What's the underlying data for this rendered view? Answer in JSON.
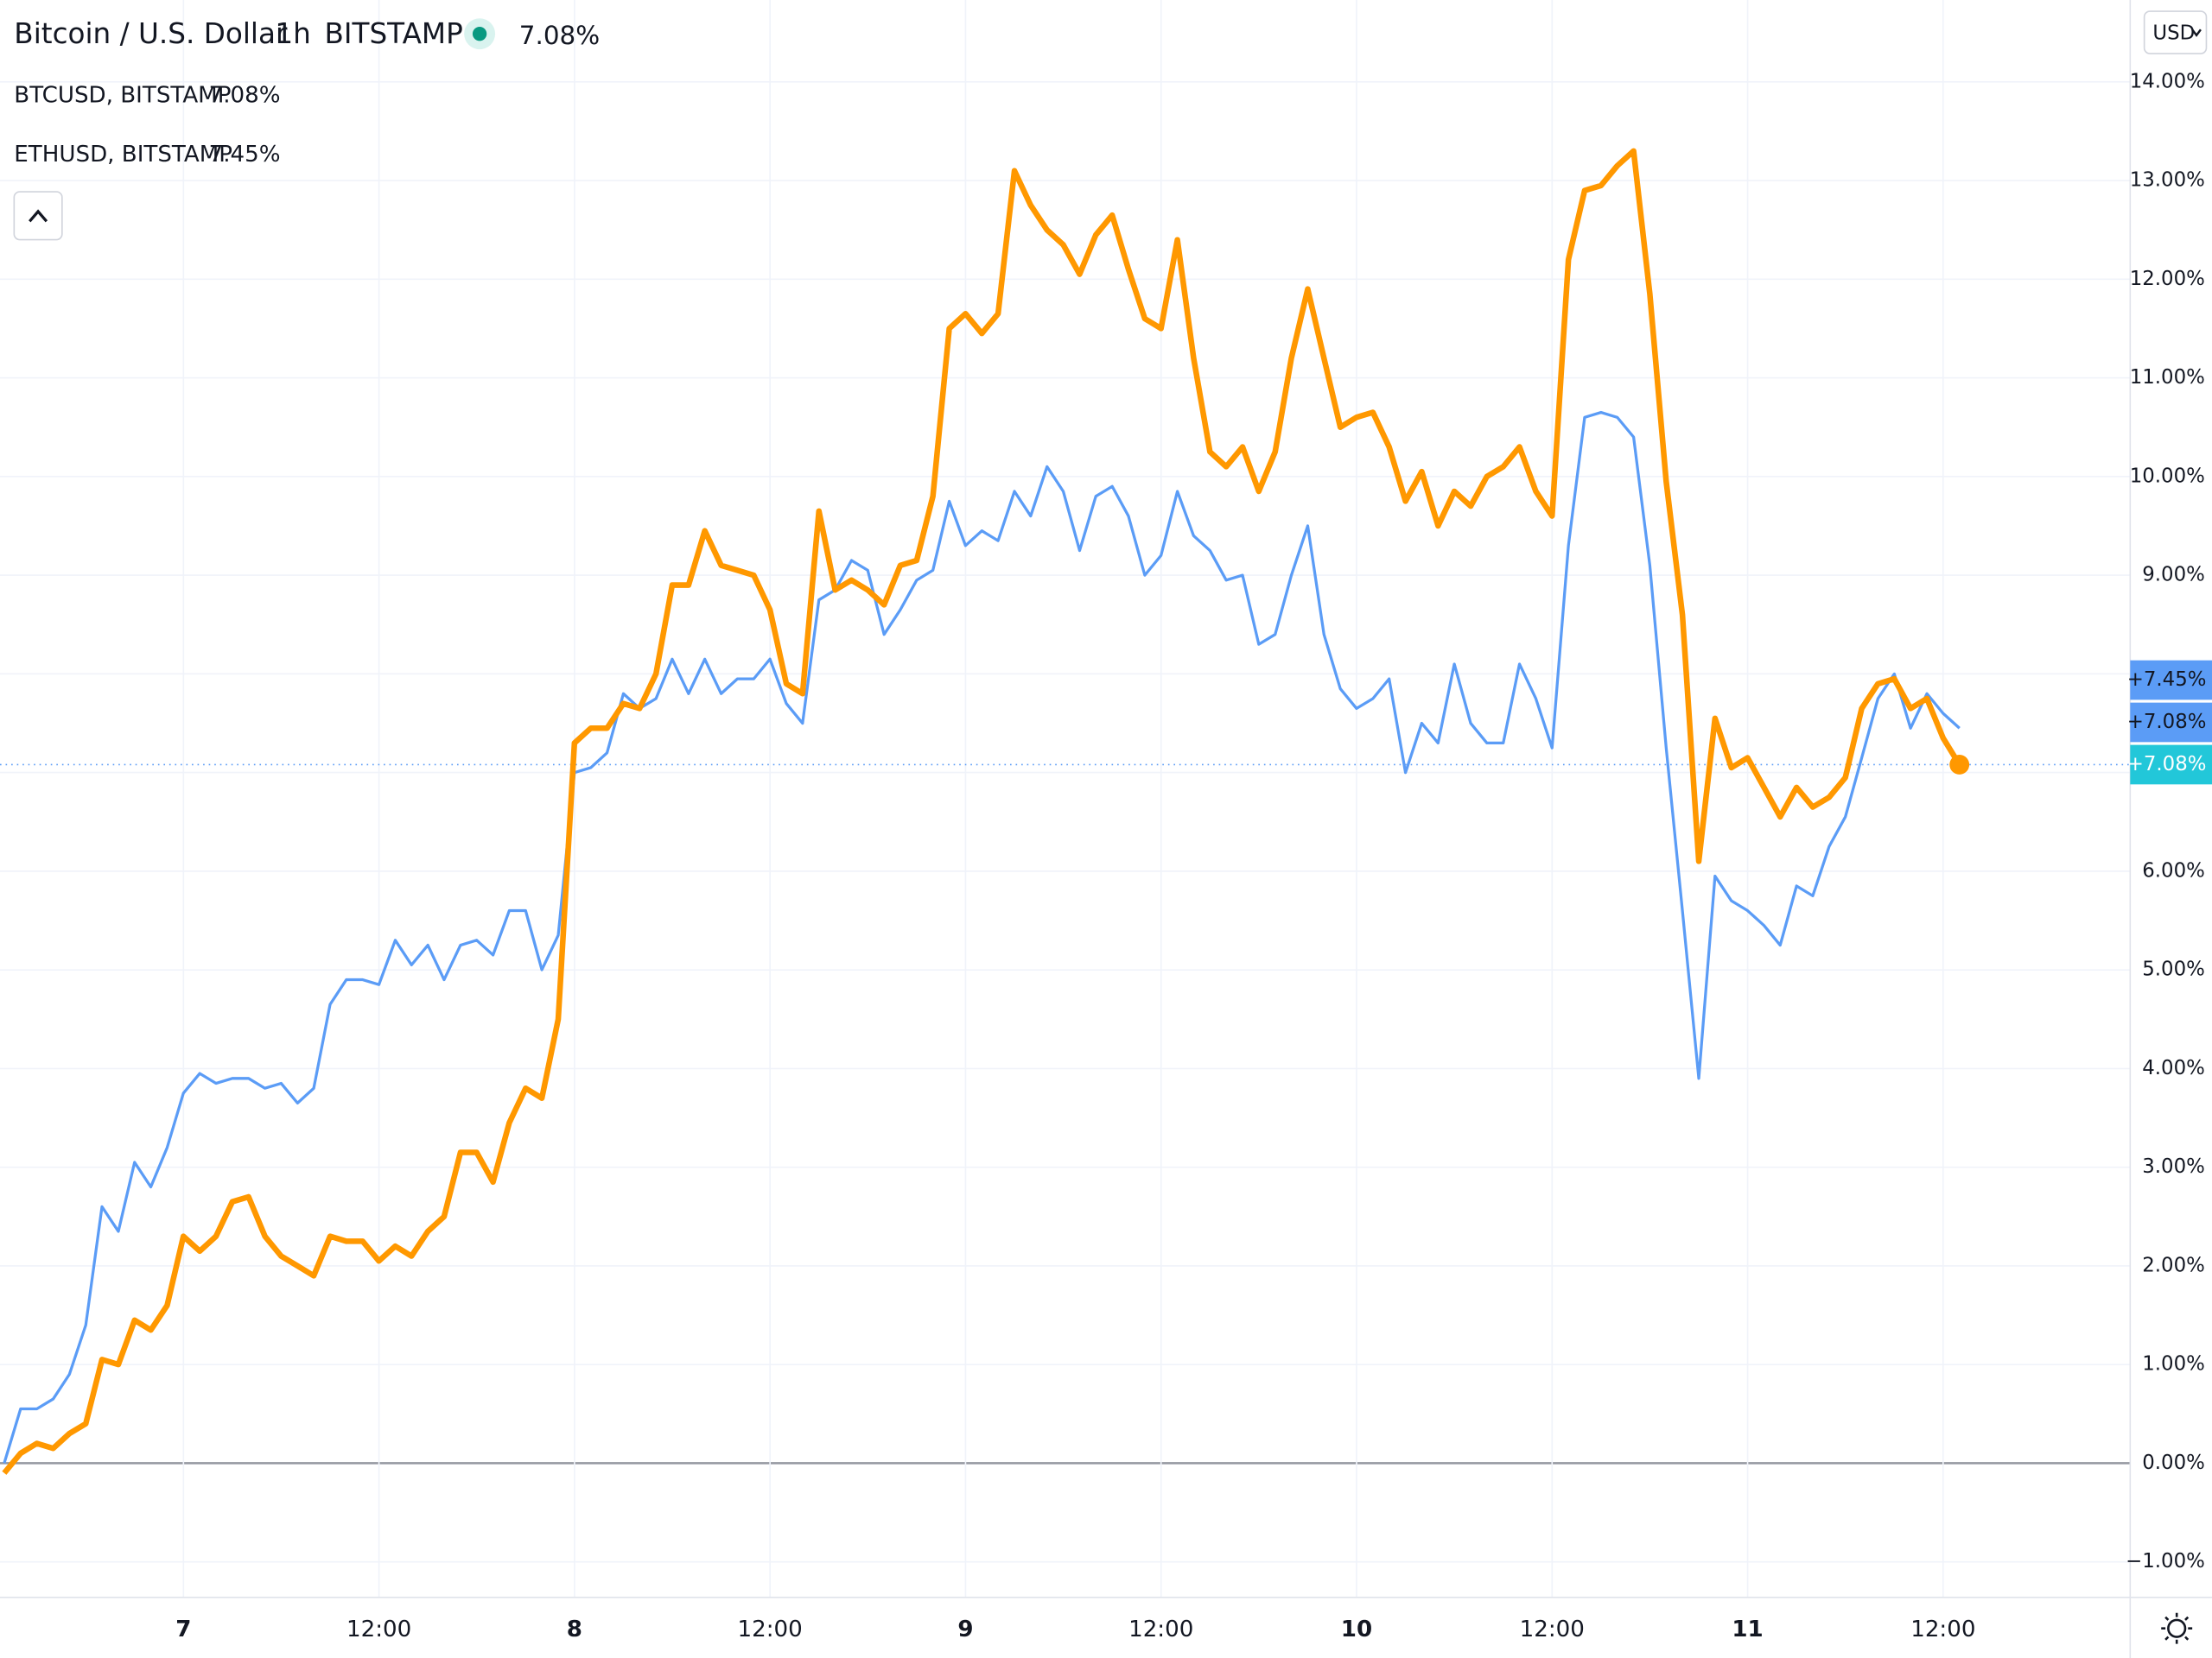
{
  "currency": "USD",
  "chart_data": {
    "type": "line",
    "x": [
      -11,
      -10,
      -9,
      -8,
      -7,
      -6,
      -5,
      -4,
      -3,
      -2,
      -1,
      0,
      1,
      2,
      3,
      4,
      5,
      6,
      7,
      8,
      9,
      10,
      11,
      12,
      13,
      14,
      15,
      16,
      17,
      18,
      19,
      20,
      21,
      22,
      23,
      24,
      25,
      26,
      27,
      28,
      29,
      30,
      31,
      32,
      33,
      34,
      35,
      36,
      37,
      38,
      39,
      40,
      41,
      42,
      43,
      44,
      45,
      46,
      47,
      48,
      49,
      50,
      51,
      52,
      53,
      54,
      55,
      56,
      57,
      58,
      59,
      60,
      61,
      62,
      63,
      64,
      65,
      66,
      67,
      68,
      69,
      70,
      71,
      72,
      73,
      74,
      75,
      76,
      77,
      78,
      79,
      80,
      81,
      82,
      83,
      84,
      85,
      86,
      87,
      88,
      89,
      90,
      91,
      92,
      93,
      94,
      95,
      96,
      97,
      98,
      99,
      100,
      101,
      102,
      103,
      104,
      105,
      106,
      107,
      108,
      109
    ],
    "xlim": [
      -11.26,
      119.48
    ],
    "xticks": [
      {
        "value": 0,
        "label": "7"
      },
      {
        "value": 12,
        "label": "12:00"
      },
      {
        "value": 24,
        "label": "8"
      },
      {
        "value": 36,
        "label": "12:00"
      },
      {
        "value": 48,
        "label": "9"
      },
      {
        "value": 60,
        "label": "12:00"
      },
      {
        "value": 72,
        "label": "10"
      },
      {
        "value": 84,
        "label": "12:00"
      },
      {
        "value": 96,
        "label": "11"
      },
      {
        "value": 108,
        "label": "12:00"
      }
    ],
    "ylim": [
      -1.36,
      14.83
    ],
    "yticks": [
      {
        "value": -1,
        "label": "−1.00%"
      },
      {
        "value": 0,
        "label": "0.00%"
      },
      {
        "value": 1,
        "label": "1.00%"
      },
      {
        "value": 2,
        "label": "2.00%"
      },
      {
        "value": 3,
        "label": "3.00%"
      },
      {
        "value": 4,
        "label": "4.00%"
      },
      {
        "value": 5,
        "label": "5.00%"
      },
      {
        "value": 6,
        "label": "6.00%"
      },
      {
        "value": 7,
        "label": "7.00%"
      },
      {
        "value": 8,
        "label": "8.00%"
      },
      {
        "value": 9,
        "label": "9.00%"
      },
      {
        "value": 10,
        "label": "10.00%"
      },
      {
        "value": 11,
        "label": "11.00%"
      },
      {
        "value": 12,
        "label": "12.00%"
      },
      {
        "value": 13,
        "label": "13.00%"
      },
      {
        "value": 14,
        "label": "14.00%"
      }
    ],
    "grid": true,
    "series": [
      {
        "name": "Bitcoin / U.S. Dollar",
        "interval": "1h",
        "exchange": "BITSTAMP",
        "color": "#ff9800",
        "last_value": 7.08,
        "last_label": "7.08%",
        "axis_label": "+7.08%",
        "values": [
          -0.1,
          0.1,
          0.2,
          0.15,
          0.3,
          0.4,
          1.05,
          1.0,
          1.45,
          1.35,
          1.6,
          2.3,
          2.15,
          2.3,
          2.65,
          2.7,
          2.3,
          2.1,
          2.0,
          1.9,
          2.3,
          2.25,
          2.25,
          2.05,
          2.2,
          2.1,
          2.35,
          2.5,
          3.15,
          3.15,
          2.85,
          3.45,
          3.8,
          3.7,
          4.5,
          7.3,
          7.45,
          7.45,
          7.7,
          7.65,
          8.0,
          8.9,
          8.9,
          9.45,
          9.1,
          9.05,
          9.0,
          8.65,
          7.9,
          7.8,
          9.65,
          8.85,
          8.95,
          8.85,
          8.7,
          9.1,
          9.15,
          9.8,
          11.5,
          11.65,
          11.45,
          11.65,
          13.1,
          12.75,
          12.5,
          12.35,
          12.05,
          12.45,
          12.65,
          12.1,
          11.6,
          11.5,
          12.4,
          11.2,
          10.25,
          10.1,
          10.3,
          9.85,
          10.25,
          11.2,
          11.9,
          11.2,
          10.5,
          10.6,
          10.65,
          10.3,
          9.75,
          10.05,
          9.5,
          9.85,
          9.7,
          10.0,
          10.1,
          10.3,
          9.85,
          9.6,
          12.2,
          12.9,
          12.95,
          13.15,
          13.3,
          11.85,
          9.95,
          8.6,
          6.1,
          7.55,
          7.05,
          7.15,
          6.85,
          6.55,
          6.85,
          6.65,
          6.75,
          6.95,
          7.65,
          7.9,
          7.95,
          7.65,
          7.75,
          7.35,
          7.08
        ]
      },
      {
        "name": "BTCUSD, BITSTAMP",
        "color": "#26c6da",
        "last_value": 7.08,
        "last_label": "7.08%",
        "axis_label": "+7.08%"
      },
      {
        "name": "ETHUSD, BITSTAMP",
        "color": "#5b9cf6",
        "last_value": 7.45,
        "last_label": "7.45%",
        "axis_label": "+7.45%",
        "values": [
          0.0,
          0.55,
          0.55,
          0.65,
          0.9,
          1.4,
          2.6,
          2.35,
          3.05,
          2.8,
          3.2,
          3.75,
          3.95,
          3.85,
          3.9,
          3.9,
          3.8,
          3.85,
          3.65,
          3.8,
          4.65,
          4.9,
          4.9,
          4.85,
          5.3,
          5.05,
          5.25,
          4.9,
          5.25,
          5.3,
          5.15,
          5.6,
          5.6,
          5.0,
          5.35,
          7.0,
          7.05,
          7.2,
          7.8,
          7.65,
          7.75,
          8.15,
          7.8,
          8.15,
          7.8,
          7.95,
          7.95,
          8.15,
          7.7,
          7.5,
          8.75,
          8.85,
          9.15,
          9.05,
          8.4,
          8.65,
          8.95,
          9.05,
          9.75,
          9.3,
          9.45,
          9.35,
          9.85,
          9.6,
          10.1,
          9.85,
          9.25,
          9.8,
          9.9,
          9.6,
          9.0,
          9.2,
          9.85,
          9.4,
          9.25,
          8.95,
          9.0,
          8.3,
          8.4,
          9.0,
          9.5,
          8.4,
          7.85,
          7.65,
          7.75,
          7.95,
          7.0,
          7.5,
          7.3,
          8.1,
          7.5,
          7.3,
          7.3,
          8.1,
          7.75,
          7.25,
          9.3,
          10.6,
          10.65,
          10.6,
          10.4,
          9.1,
          7.25,
          5.6,
          3.9,
          5.95,
          5.7,
          5.6,
          5.45,
          5.25,
          5.85,
          5.75,
          6.25,
          6.55,
          7.15,
          7.75,
          8.0,
          7.45,
          7.8,
          7.6,
          7.45
        ]
      }
    ]
  }
}
